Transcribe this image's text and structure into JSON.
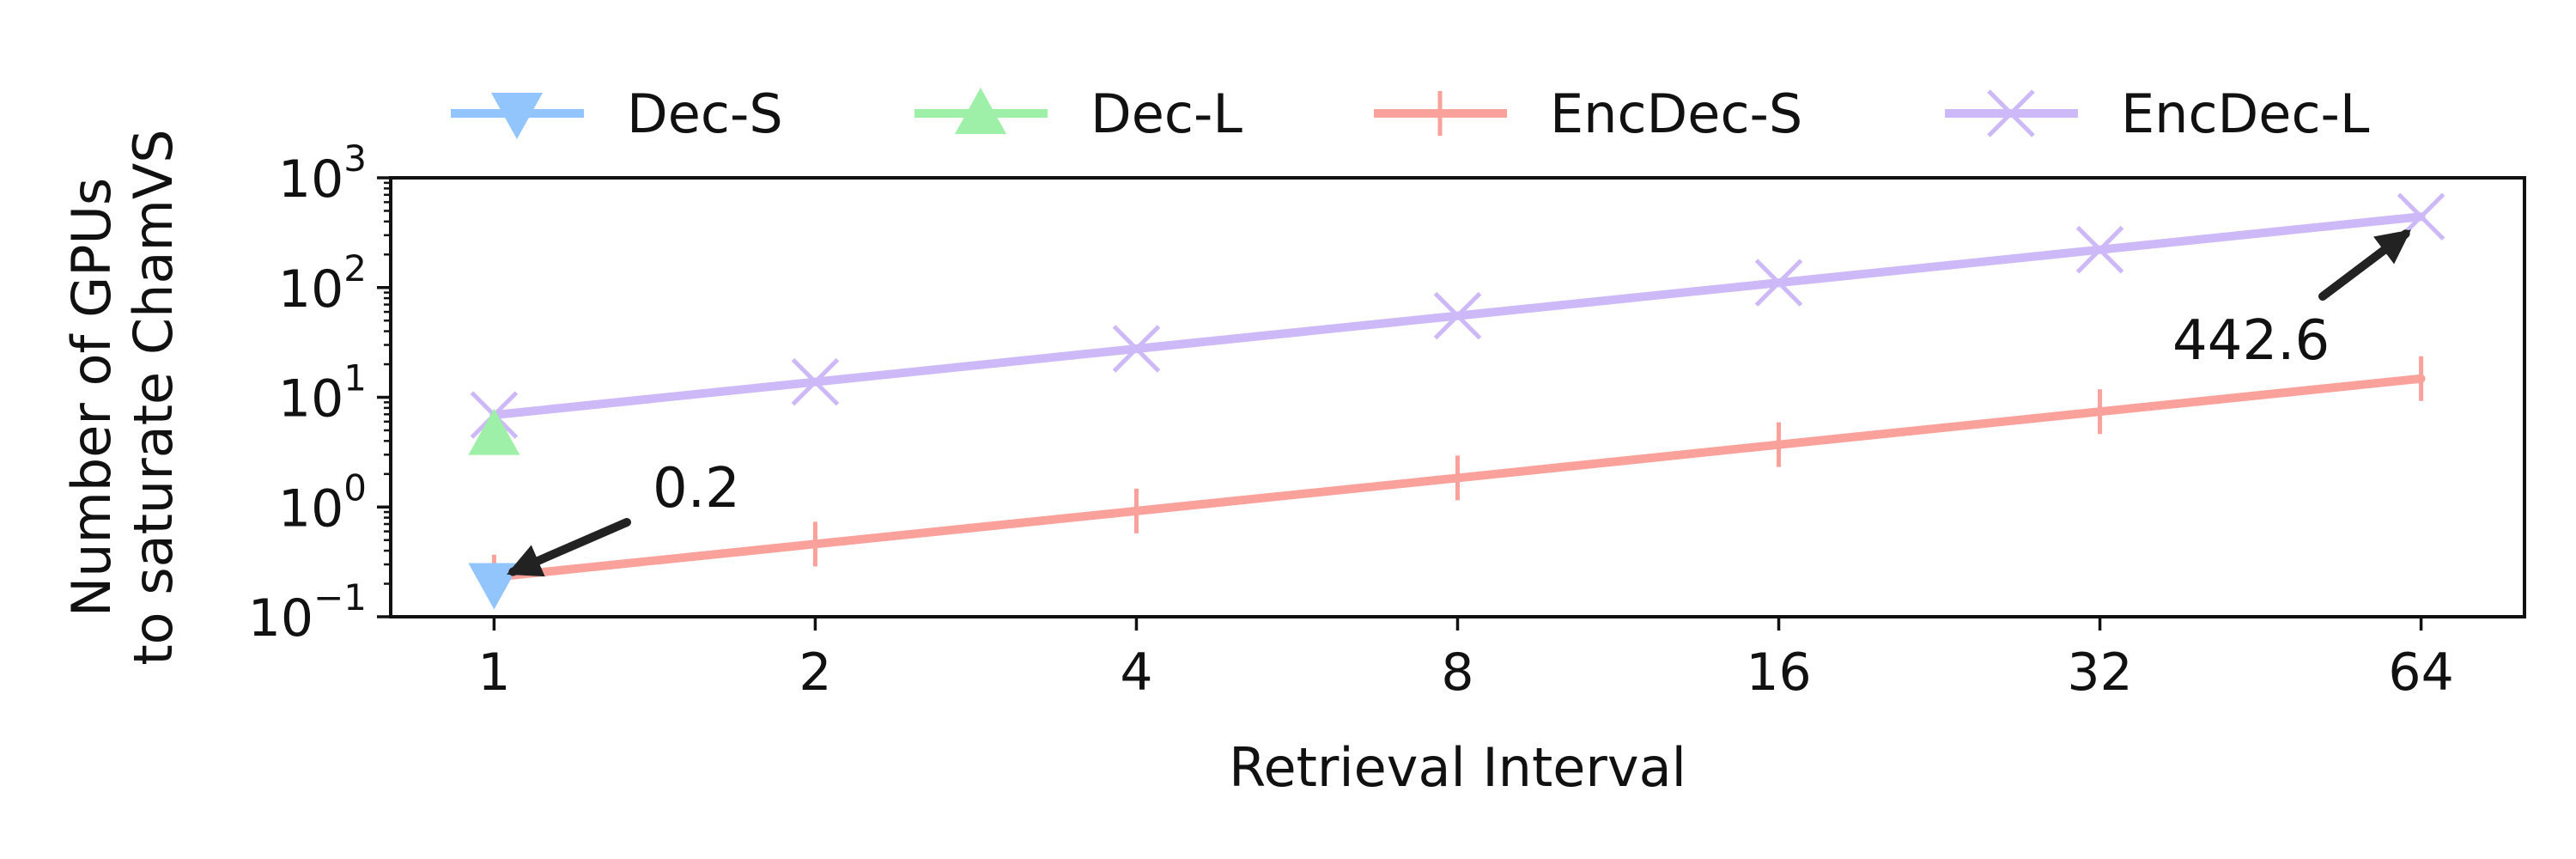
{
  "chart_data": {
    "type": "line",
    "xlabel": "Retrieval Interval",
    "ylabel": [
      "Number of GPUs",
      "to saturate ChamVS"
    ],
    "xscale": "log2",
    "yscale": "log10",
    "x_ticks": [
      1,
      2,
      4,
      8,
      16,
      32,
      64
    ],
    "x_tick_labels": [
      "1",
      "2",
      "4",
      "8",
      "16",
      "32",
      "64"
    ],
    "y_ticks": [
      0.1,
      1,
      10,
      100,
      1000
    ],
    "y_tick_labels": [
      {
        "base": "10",
        "exp": "−1"
      },
      {
        "base": "10",
        "exp": "0"
      },
      {
        "base": "10",
        "exp": "1"
      },
      {
        "base": "10",
        "exp": "2"
      },
      {
        "base": "10",
        "exp": "3"
      }
    ],
    "xlim": [
      0.8,
      80
    ],
    "ylim": [
      0.1,
      1000
    ],
    "grid": false,
    "legend_position": "top",
    "series": [
      {
        "name": "Dec-S",
        "color": "#93c5fd",
        "marker": "triangle-down",
        "x": [
          1
        ],
        "y": [
          0.2
        ]
      },
      {
        "name": "Dec-L",
        "color": "#9ef0a8",
        "marker": "triangle-up",
        "x": [
          1
        ],
        "y": [
          4.6
        ]
      },
      {
        "name": "EncDec-S",
        "color": "#f9a19a",
        "marker": "vline",
        "x": [
          1,
          2,
          4,
          8,
          16,
          32,
          64
        ],
        "y": [
          0.23,
          0.46,
          0.92,
          1.84,
          3.7,
          7.4,
          14.8
        ]
      },
      {
        "name": "EncDec-L",
        "color": "#cdb8f8",
        "marker": "x",
        "x": [
          1,
          2,
          4,
          8,
          16,
          32,
          64
        ],
        "y": [
          6.9,
          13.8,
          27.7,
          55.3,
          110.6,
          221.3,
          442.6
        ]
      }
    ],
    "annotations": [
      {
        "text": "0.2",
        "x": 1,
        "y": 0.2
      },
      {
        "text": "442.6",
        "x": 64,
        "y": 442.6
      }
    ]
  }
}
